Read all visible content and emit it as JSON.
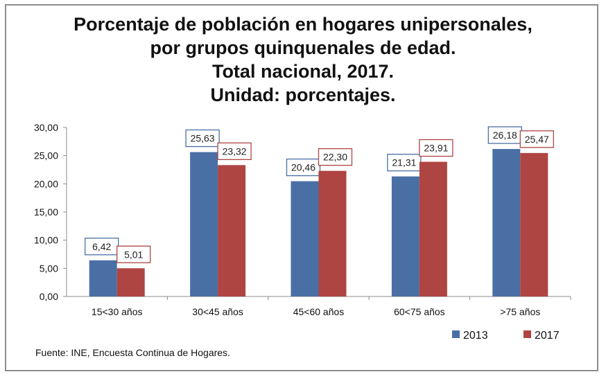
{
  "chart_data": {
    "type": "bar",
    "title_lines": [
      "Porcentaje de población en hogares unipersonales,",
      "por grupos quinquenales de edad.",
      "Total nacional, 2017.",
      "Unidad: porcentajes."
    ],
    "categories": [
      "15<30 años",
      "30<45 años",
      "45<60 años",
      "60<75 años",
      ">75 años"
    ],
    "series": [
      {
        "name": "2013",
        "color": "#4a6fa5",
        "label_border": "#4a6fa5",
        "values": [
          6.42,
          25.63,
          20.46,
          21.31,
          26.18
        ],
        "labels": [
          "6,42",
          "25,63",
          "20,46",
          "21,31",
          "26,18"
        ]
      },
      {
        "name": "2017",
        "color": "#ae4543",
        "label_border": "#ae4543",
        "values": [
          5.01,
          23.32,
          22.3,
          23.91,
          25.47
        ],
        "labels": [
          "5,01",
          "23,32",
          "22,30",
          "23,91",
          "25,47"
        ]
      }
    ],
    "y_ticks": [
      "0,00",
      "5,00",
      "10,00",
      "15,00",
      "20,00",
      "25,00",
      "30,00"
    ],
    "ylim": [
      0,
      30
    ],
    "grid": false,
    "legend_position": "bottom-right",
    "xlabel": "",
    "ylabel": ""
  },
  "source": "Fuente: INE, Encuesta Continua de Hogares."
}
